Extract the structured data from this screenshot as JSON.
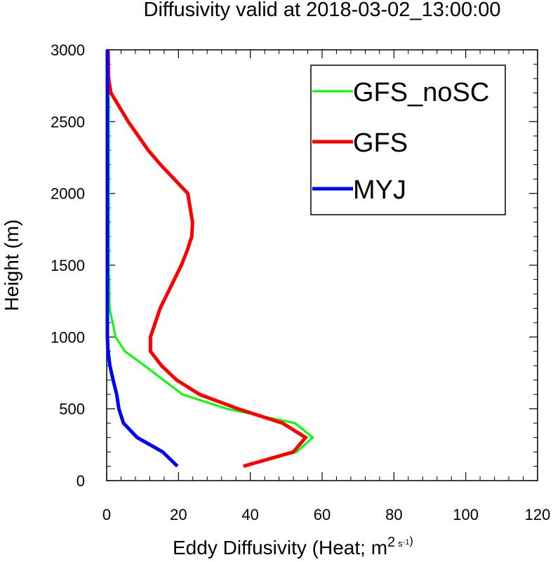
{
  "chart_data": {
    "type": "line",
    "title": "Diffusivity valid at 2018-03-02_13:00:00",
    "xlabel": "Eddy Diffusivity (Heat; m",
    "xlabel_sup_base": "2",
    "xlabel_sup_s": "s",
    "xlabel_sup_exp": "-1",
    "xlabel_close": ")",
    "ylabel": "Height (m)",
    "xlim": [
      0,
      120
    ],
    "ylim": [
      0,
      3000
    ],
    "x_ticks": [
      0,
      20,
      40,
      60,
      80,
      100,
      120
    ],
    "y_ticks": [
      0,
      500,
      1000,
      1500,
      2000,
      2500,
      3000
    ],
    "x_tick_labels": [
      "0",
      "20",
      "40",
      "60",
      "80",
      "100",
      "120"
    ],
    "y_tick_labels": [
      "0",
      "500",
      "1000",
      "1500",
      "2000",
      "2500",
      "3000"
    ],
    "legend_position": "top-right",
    "series": [
      {
        "name": "GFS_noSC",
        "color": "#00ff00",
        "width": "thin",
        "points": [
          [
            38.5,
            100
          ],
          [
            52.9,
            200
          ],
          [
            57.4,
            300
          ],
          [
            52.5,
            400
          ],
          [
            33.5,
            500
          ],
          [
            21.1,
            600
          ],
          [
            10.6,
            800
          ],
          [
            5.1,
            900
          ],
          [
            2.5,
            1000
          ],
          [
            0.8,
            1200
          ],
          [
            0.6,
            1500
          ],
          [
            0.6,
            2000
          ],
          [
            0.6,
            2500
          ],
          [
            0.6,
            3000
          ]
        ]
      },
      {
        "name": "GFS",
        "color": "#ff0000",
        "width": "thick",
        "points": [
          [
            38.1,
            100
          ],
          [
            52.0,
            200
          ],
          [
            55.4,
            300
          ],
          [
            49.0,
            400
          ],
          [
            36.6,
            500
          ],
          [
            25.9,
            600
          ],
          [
            19.5,
            700
          ],
          [
            15.3,
            800
          ],
          [
            12.2,
            900
          ],
          [
            12.2,
            1000
          ],
          [
            14.9,
            1200
          ],
          [
            20.8,
            1500
          ],
          [
            22.4,
            1600
          ],
          [
            23.7,
            1700
          ],
          [
            23.9,
            1800
          ],
          [
            22.6,
            2000
          ],
          [
            15.0,
            2200
          ],
          [
            11.6,
            2300
          ],
          [
            6.0,
            2500
          ],
          [
            1.2,
            2700
          ],
          [
            0.5,
            2800
          ],
          [
            0.4,
            3000
          ]
        ]
      },
      {
        "name": "MYJ",
        "color": "#0000ff",
        "width": "thick",
        "points": [
          [
            19.7,
            100
          ],
          [
            15.6,
            200
          ],
          [
            8.5,
            300
          ],
          [
            4.7,
            400
          ],
          [
            3.4,
            500
          ],
          [
            2.8,
            600
          ],
          [
            1.8,
            700
          ],
          [
            0.9,
            800
          ],
          [
            0.4,
            900
          ],
          [
            0.2,
            1000
          ],
          [
            0.2,
            1500
          ],
          [
            0.2,
            2000
          ],
          [
            0.2,
            2500
          ],
          [
            0.2,
            3000
          ]
        ]
      }
    ]
  }
}
